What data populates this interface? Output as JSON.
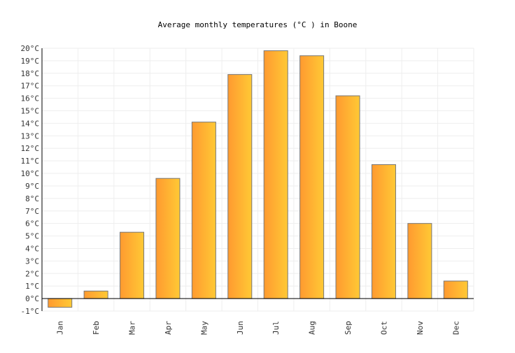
{
  "chart_data": {
    "type": "bar",
    "title": "Average monthly temperatures (°C ) in Boone",
    "xlabel": "",
    "ylabel": "",
    "categories": [
      "Jan",
      "Feb",
      "Mar",
      "Apr",
      "May",
      "Jun",
      "Jul",
      "Aug",
      "Sep",
      "Oct",
      "Nov",
      "Dec"
    ],
    "values": [
      -0.7,
      0.6,
      5.3,
      9.6,
      14.1,
      17.9,
      19.8,
      19.4,
      16.2,
      10.7,
      6.0,
      1.4
    ],
    "ylim": [
      -1,
      20
    ],
    "ytick_step": 1,
    "ytick_suffix": "°C",
    "grid": true,
    "colors": {
      "bar_left": "#ff9a30",
      "bar_right": "#ffc935",
      "bar_stroke": "#777777",
      "grid": "#eeeeee",
      "axis": "#000000"
    }
  }
}
